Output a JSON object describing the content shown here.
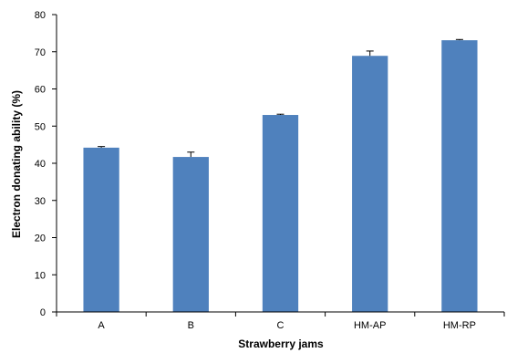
{
  "chart_data": {
    "type": "bar",
    "xlabel": "Strawberry jams",
    "ylabel": "Electron donating ability (%)",
    "categories": [
      "A",
      "B",
      "C",
      "HM-AP",
      "HM-RP"
    ],
    "values": [
      44.2,
      41.7,
      53.0,
      68.9,
      73.1
    ],
    "errors": [
      0.3,
      1.3,
      0.2,
      1.3,
      0.2
    ],
    "ylim": [
      0,
      80
    ],
    "yticks": [
      "0",
      "10",
      "20",
      "30",
      "40",
      "50",
      "60",
      "70",
      "80"
    ],
    "bar_color": "#4f81bd",
    "grid": false,
    "legend": "none"
  }
}
